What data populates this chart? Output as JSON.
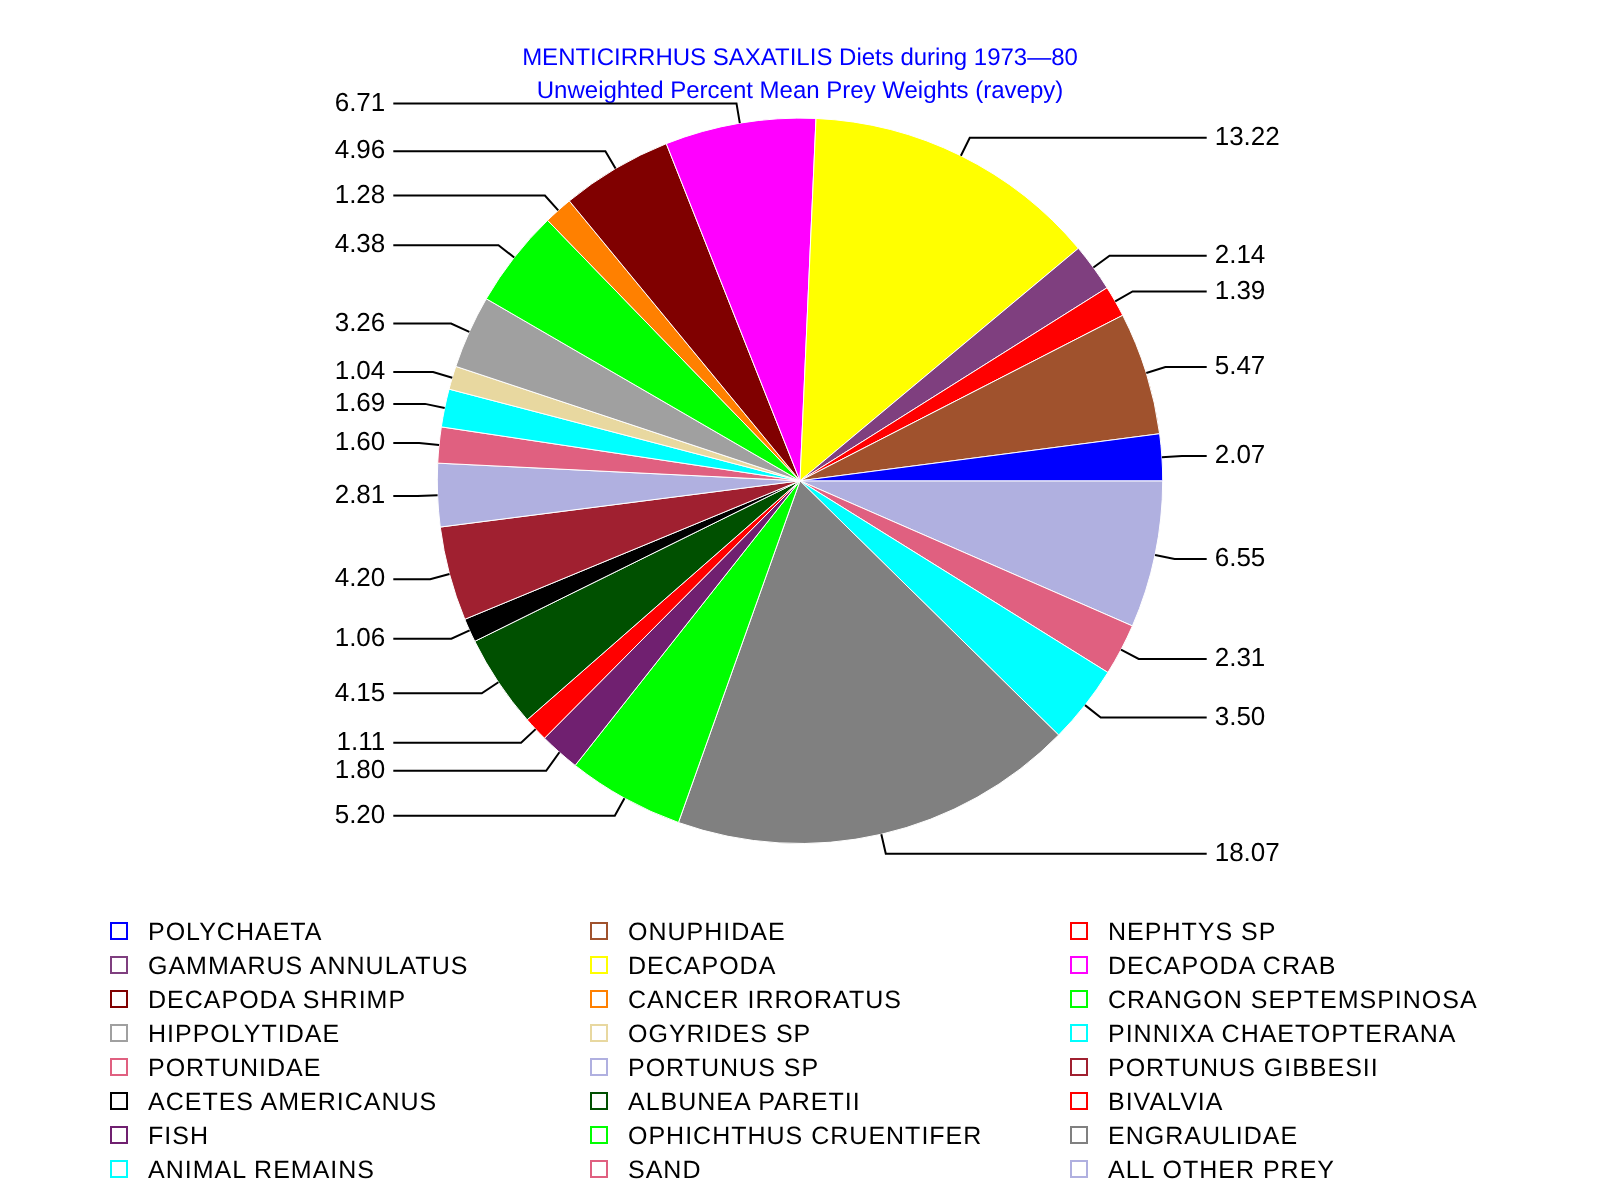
{
  "chart_data": {
    "type": "pie",
    "title": "MENTICIRRHUS SAXATILIS Diets during 1973—80",
    "subtitle": "Unweighted Percent Mean Prey Weights (ravepy)",
    "categories": [
      "POLYCHAETA",
      "ONUPHIDAE",
      "NEPHTYS SP",
      "GAMMARUS ANNULATUS",
      "DECAPODA",
      "DECAPODA CRAB",
      "DECAPODA SHRIMP",
      "CANCER IRRORATUS",
      "CRANGON SEPTEMSPINOSA",
      "HIPPOLYTIDAE",
      "OGYRIDES SP",
      "PINNIXA CHAETOPTERANA",
      "PORTUNIDAE",
      "PORTUNUS SP",
      "PORTUNUS GIBBESII",
      "ACETES AMERICANUS",
      "ALBUNEA PARETII",
      "BIVALVIA",
      "FISH",
      "OPHICHTHUS CRUENTIFER",
      "ENGRAULIDAE",
      "ANIMAL REMAINS",
      "SAND",
      "ALL OTHER PREY"
    ],
    "values": [
      2.07,
      5.47,
      1.39,
      2.14,
      13.22,
      6.71,
      4.96,
      1.28,
      4.38,
      3.26,
      1.04,
      1.69,
      1.6,
      2.81,
      4.2,
      1.06,
      4.15,
      1.11,
      1.8,
      5.2,
      18.07,
      3.5,
      2.31,
      6.55
    ],
    "value_labels": [
      "2.07",
      "5.47",
      "1.39",
      "2.14",
      "13.22",
      "6.71",
      "4.96",
      "1.28",
      "4.38",
      "3.26",
      "1.04",
      "1.69",
      "1.60",
      "2.81",
      "4.20",
      "1.06",
      "4.15",
      "1.11",
      "1.80",
      "5.20",
      "18.07",
      "3.50",
      "2.31",
      "6.55"
    ],
    "colors": [
      "#0000ff",
      "#a0522d",
      "#ff0000",
      "#7f3f7f",
      "#ffff00",
      "#ff00ff",
      "#800000",
      "#ff8000",
      "#00ff00",
      "#a0a0a0",
      "#e8d8a0",
      "#00ffff",
      "#e06080",
      "#b0b0e0",
      "#a02030",
      "#000000",
      "#005000",
      "#ff0000",
      "#702070",
      "#00ff00",
      "#808080",
      "#00ffff",
      "#e06080",
      "#b0b0e0"
    ],
    "legend": "bottom"
  }
}
